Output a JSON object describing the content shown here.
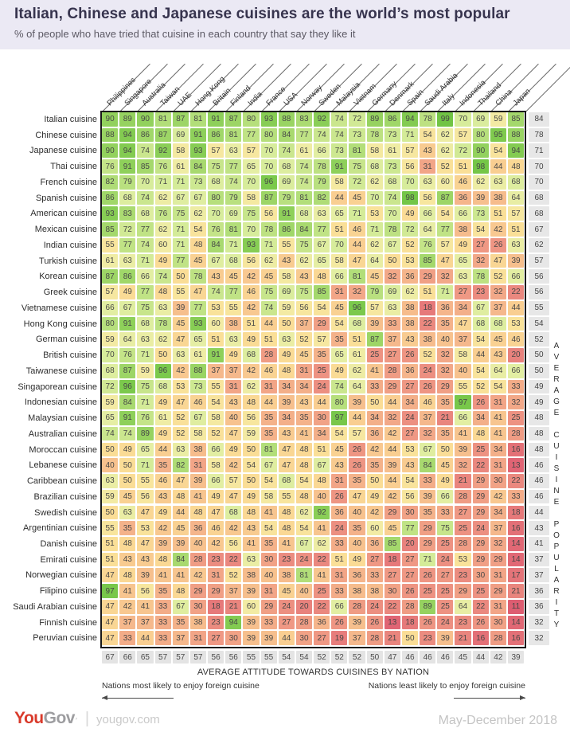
{
  "title": "Italian, Chinese and Japanese cuisines are the world’s most popular",
  "subtitle": "% of people who have tried that cuisine in each country that say they like it",
  "right_axis_label": "AVERAGE CUISINE POPULARITY",
  "bottom_axis_label": "AVERAGE ATTITUDE TOWARDS CUISINES BY NATION",
  "notes": {
    "left": "Nations most likely to enjoy foreign cuisine",
    "right": "Nations least likely to enjoy foreign cuisine"
  },
  "footer": {
    "brand_you": "You",
    "brand_gov": "Gov",
    "brand_tick": "′",
    "brand_divider": "|",
    "brand_site": "yougov.com",
    "date_range": "May-December 2018"
  },
  "chart_data": {
    "type": "heatmap",
    "columns": [
      "Philippines",
      "Singapore",
      "Australia",
      "Taiwan",
      "UAE",
      "Hong Kong",
      "Britain",
      "Finland",
      "India",
      "France",
      "USA",
      "Norway",
      "Sweden",
      "Malaysia",
      "Vietnam",
      "Germany",
      "Denmark",
      "Spain",
      "Saudi Arabia",
      "Italy",
      "Indonesia",
      "Thailand",
      "China",
      "Japan"
    ],
    "rows": [
      {
        "label": "Italian cuisine",
        "values": [
          90,
          89,
          90,
          81,
          87,
          81,
          91,
          87,
          80,
          93,
          88,
          83,
          92,
          74,
          72,
          89,
          86,
          94,
          78,
          99,
          70,
          69,
          59,
          85
        ],
        "average": 84
      },
      {
        "label": "Chinese cuisine",
        "values": [
          88,
          94,
          86,
          87,
          69,
          91,
          86,
          81,
          77,
          80,
          84,
          77,
          74,
          74,
          73,
          78,
          73,
          71,
          54,
          62,
          57,
          80,
          95,
          88
        ],
        "average": 78
      },
      {
        "label": "Japanese cuisine",
        "values": [
          90,
          94,
          74,
          92,
          58,
          93,
          57,
          63,
          57,
          70,
          74,
          61,
          66,
          73,
          81,
          58,
          61,
          57,
          43,
          62,
          72,
          90,
          54,
          94
        ],
        "average": 71
      },
      {
        "label": "Thai cuisine",
        "values": [
          76,
          91,
          85,
          76,
          61,
          84,
          75,
          77,
          65,
          70,
          68,
          74,
          78,
          91,
          75,
          68,
          73,
          56,
          31,
          52,
          51,
          98,
          44,
          48
        ],
        "average": 70
      },
      {
        "label": "French cuisine",
        "values": [
          82,
          79,
          70,
          71,
          71,
          73,
          68,
          74,
          70,
          96,
          69,
          74,
          79,
          58,
          72,
          62,
          68,
          70,
          63,
          60,
          46,
          62,
          63,
          68
        ],
        "average": 70
      },
      {
        "label": "Spanish cuisine",
        "values": [
          86,
          68,
          74,
          62,
          67,
          67,
          80,
          79,
          58,
          87,
          79,
          81,
          82,
          44,
          45,
          70,
          74,
          98,
          56,
          87,
          36,
          39,
          38,
          64
        ],
        "average": 68
      },
      {
        "label": "American cuisine",
        "values": [
          93,
          83,
          68,
          76,
          75,
          62,
          70,
          69,
          75,
          56,
          91,
          68,
          63,
          65,
          71,
          53,
          70,
          49,
          66,
          54,
          66,
          73,
          51,
          57
        ],
        "average": 68
      },
      {
        "label": "Mexican cuisine",
        "values": [
          85,
          72,
          77,
          62,
          71,
          54,
          76,
          81,
          70,
          78,
          86,
          84,
          77,
          51,
          46,
          71,
          78,
          72,
          64,
          77,
          38,
          54,
          42,
          51
        ],
        "average": 67
      },
      {
        "label": "Indian cuisine",
        "values": [
          55,
          77,
          74,
          60,
          71,
          48,
          84,
          71,
          93,
          71,
          55,
          75,
          67,
          70,
          44,
          62,
          67,
          52,
          76,
          57,
          49,
          27,
          26,
          63
        ],
        "average": 62
      },
      {
        "label": "Turkish cuisine",
        "values": [
          61,
          63,
          71,
          49,
          77,
          45,
          67,
          68,
          56,
          62,
          43,
          62,
          65,
          58,
          47,
          64,
          50,
          53,
          85,
          47,
          65,
          32,
          47,
          39
        ],
        "average": 57
      },
      {
        "label": "Korean cuisine",
        "values": [
          87,
          86,
          66,
          74,
          50,
          78,
          43,
          45,
          42,
          45,
          58,
          43,
          48,
          66,
          81,
          45,
          32,
          36,
          29,
          32,
          63,
          78,
          52,
          66
        ],
        "average": 56
      },
      {
        "label": "Greek cuisine",
        "values": [
          57,
          49,
          77,
          48,
          55,
          47,
          74,
          77,
          46,
          75,
          69,
          75,
          85,
          31,
          32,
          79,
          69,
          62,
          51,
          71,
          27,
          23,
          32,
          22
        ],
        "average": 56
      },
      {
        "label": "Vietnamese cuisine",
        "values": [
          66,
          67,
          75,
          63,
          39,
          77,
          53,
          55,
          42,
          74,
          59,
          56,
          54,
          45,
          96,
          57,
          63,
          38,
          18,
          36,
          34,
          67,
          37,
          44
        ],
        "average": 55
      },
      {
        "label": "Hong Kong cuisine",
        "values": [
          80,
          91,
          68,
          78,
          45,
          93,
          60,
          38,
          51,
          44,
          50,
          37,
          29,
          54,
          68,
          39,
          33,
          38,
          22,
          35,
          47,
          68,
          68,
          53
        ],
        "average": 54
      },
      {
        "label": "German cuisine",
        "values": [
          59,
          64,
          63,
          62,
          47,
          65,
          51,
          63,
          49,
          51,
          63,
          52,
          57,
          35,
          51,
          87,
          37,
          43,
          38,
          40,
          37,
          54,
          45,
          46
        ],
        "average": 52
      },
      {
        "label": "British cuisine",
        "values": [
          70,
          76,
          71,
          50,
          63,
          61,
          91,
          49,
          68,
          28,
          49,
          45,
          35,
          65,
          61,
          25,
          27,
          26,
          52,
          32,
          58,
          44,
          43,
          20
        ],
        "average": 50
      },
      {
        "label": "Taiwanese cuisine",
        "values": [
          68,
          87,
          59,
          96,
          42,
          88,
          37,
          37,
          42,
          46,
          48,
          31,
          25,
          49,
          62,
          41,
          28,
          36,
          24,
          32,
          40,
          54,
          64,
          66
        ],
        "average": 50
      },
      {
        "label": "Singaporean cuisine",
        "values": [
          72,
          96,
          75,
          68,
          53,
          73,
          55,
          31,
          62,
          31,
          34,
          34,
          24,
          74,
          64,
          33,
          29,
          27,
          26,
          29,
          55,
          52,
          54,
          33
        ],
        "average": 49
      },
      {
        "label": "Indonesian cuisine",
        "values": [
          59,
          84,
          71,
          49,
          47,
          46,
          54,
          43,
          48,
          44,
          39,
          43,
          44,
          80,
          39,
          50,
          44,
          34,
          46,
          35,
          97,
          26,
          31,
          32
        ],
        "average": 49
      },
      {
        "label": "Malaysian cuisine",
        "values": [
          65,
          91,
          76,
          61,
          52,
          67,
          58,
          40,
          56,
          35,
          34,
          35,
          30,
          97,
          44,
          34,
          32,
          24,
          37,
          21,
          66,
          34,
          41,
          25
        ],
        "average": 48
      },
      {
        "label": "Australian cuisine",
        "values": [
          74,
          74,
          89,
          49,
          52,
          58,
          52,
          47,
          59,
          35,
          43,
          41,
          34,
          54,
          57,
          36,
          42,
          27,
          32,
          35,
          41,
          48,
          41,
          28
        ],
        "average": 48
      },
      {
        "label": "Moroccan cuisine",
        "values": [
          50,
          49,
          65,
          44,
          63,
          38,
          66,
          49,
          50,
          81,
          47,
          48,
          51,
          45,
          26,
          42,
          44,
          53,
          67,
          50,
          39,
          25,
          34,
          16
        ],
        "average": 48
      },
      {
        "label": "Lebanese cuisine",
        "values": [
          40,
          50,
          71,
          35,
          82,
          31,
          58,
          42,
          54,
          67,
          47,
          48,
          67,
          43,
          26,
          35,
          39,
          43,
          84,
          45,
          32,
          22,
          31,
          13
        ],
        "average": 46
      },
      {
        "label": "Caribbean cuisine",
        "values": [
          63,
          50,
          55,
          46,
          47,
          39,
          66,
          57,
          50,
          54,
          68,
          54,
          48,
          31,
          35,
          50,
          44,
          54,
          33,
          49,
          21,
          29,
          30,
          22
        ],
        "average": 46
      },
      {
        "label": "Brazilian cuisine",
        "values": [
          59,
          45,
          56,
          43,
          48,
          41,
          49,
          47,
          49,
          58,
          55,
          48,
          40,
          26,
          47,
          49,
          42,
          56,
          39,
          66,
          28,
          29,
          42,
          33
        ],
        "average": 46
      },
      {
        "label": "Swedish cuisine",
        "values": [
          50,
          63,
          47,
          49,
          44,
          48,
          47,
          68,
          48,
          41,
          48,
          62,
          92,
          36,
          40,
          42,
          29,
          30,
          35,
          33,
          27,
          29,
          34,
          18
        ],
        "average": 44
      },
      {
        "label": "Argentinian cuisine",
        "values": [
          55,
          35,
          53,
          42,
          45,
          36,
          46,
          42,
          43,
          54,
          48,
          54,
          41,
          24,
          35,
          60,
          45,
          77,
          29,
          75,
          25,
          24,
          37,
          16
        ],
        "average": 43
      },
      {
        "label": "Danish cuisine",
        "values": [
          51,
          48,
          47,
          39,
          39,
          40,
          42,
          56,
          41,
          35,
          41,
          67,
          62,
          33,
          40,
          36,
          85,
          20,
          29,
          25,
          28,
          29,
          32,
          14
        ],
        "average": 41
      },
      {
        "label": "Emirati cuisine",
        "values": [
          51,
          43,
          43,
          48,
          84,
          28,
          23,
          22,
          63,
          30,
          23,
          24,
          22,
          51,
          49,
          27,
          18,
          27,
          71,
          24,
          53,
          29,
          29,
          14
        ],
        "average": 37
      },
      {
        "label": "Norwegian cuisine",
        "values": [
          47,
          48,
          39,
          41,
          41,
          42,
          31,
          52,
          38,
          40,
          38,
          81,
          41,
          31,
          36,
          33,
          27,
          27,
          26,
          27,
          23,
          30,
          31,
          17
        ],
        "average": 37
      },
      {
        "label": "Filipino cuisine",
        "values": [
          97,
          41,
          56,
          35,
          48,
          29,
          29,
          37,
          39,
          31,
          45,
          40,
          25,
          33,
          38,
          38,
          30,
          26,
          25,
          25,
          29,
          25,
          29,
          21
        ],
        "average": 36
      },
      {
        "label": "Saudi Arabian cuisine",
        "values": [
          47,
          42,
          41,
          33,
          67,
          30,
          18,
          21,
          60,
          29,
          24,
          20,
          22,
          66,
          28,
          24,
          22,
          28,
          89,
          25,
          64,
          22,
          31,
          11
        ],
        "average": 36
      },
      {
        "label": "Finnish cuisine",
        "values": [
          47,
          37,
          37,
          33,
          35,
          38,
          23,
          94,
          39,
          33,
          27,
          28,
          36,
          26,
          39,
          26,
          13,
          18,
          26,
          24,
          23,
          26,
          30,
          14
        ],
        "average": 32
      },
      {
        "label": "Peruvian cuisine",
        "values": [
          47,
          33,
          44,
          33,
          37,
          31,
          27,
          30,
          39,
          39,
          44,
          30,
          27,
          19,
          37,
          28,
          21,
          50,
          23,
          39,
          21,
          16,
          28,
          16
        ],
        "average": 32
      }
    ],
    "column_averages": [
      67,
      66,
      65,
      57,
      57,
      57,
      56,
      56,
      55,
      55,
      54,
      54,
      52,
      52,
      52,
      50,
      47,
      46,
      46,
      46,
      45,
      44,
      42,
      39
    ],
    "color_scale": [
      [
        10,
        "#dc5a70"
      ],
      [
        15,
        "#e26b76"
      ],
      [
        20,
        "#e8827d"
      ],
      [
        25,
        "#ed9282"
      ],
      [
        30,
        "#f1a286"
      ],
      [
        35,
        "#f4b28a"
      ],
      [
        40,
        "#f7c28e"
      ],
      [
        45,
        "#f9d192"
      ],
      [
        50,
        "#fadd96"
      ],
      [
        55,
        "#f8e59d"
      ],
      [
        60,
        "#f2eba4"
      ],
      [
        65,
        "#e5eea4"
      ],
      [
        70,
        "#d7ec9b"
      ],
      [
        75,
        "#c7e58b"
      ],
      [
        80,
        "#b6df7c"
      ],
      [
        85,
        "#a4d86c"
      ],
      [
        90,
        "#92d15d"
      ],
      [
        95,
        "#7fca4e"
      ],
      [
        100,
        "#6dc343"
      ]
    ],
    "legend_position": "none",
    "grid": false
  }
}
